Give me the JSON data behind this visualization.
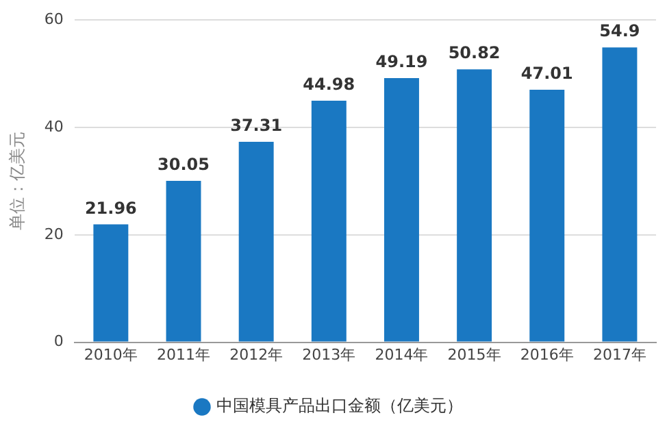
{
  "chart_data": {
    "type": "bar",
    "ylabel": "单位：亿美元",
    "categories": [
      "2010年",
      "2011年",
      "2012年",
      "2013年",
      "2014年",
      "2015年",
      "2016年",
      "2017年"
    ],
    "series": [
      {
        "name": "中国模具产品出口金额（亿美元）",
        "color": "#1a78c2",
        "values": [
          21.96,
          30.05,
          37.31,
          44.98,
          49.19,
          50.82,
          47.01,
          54.9
        ]
      }
    ],
    "ylim": [
      0,
      60
    ],
    "yticks": [
      0,
      20,
      40,
      60
    ],
    "grid": "y",
    "legend": "bottom",
    "data_labels": true
  }
}
